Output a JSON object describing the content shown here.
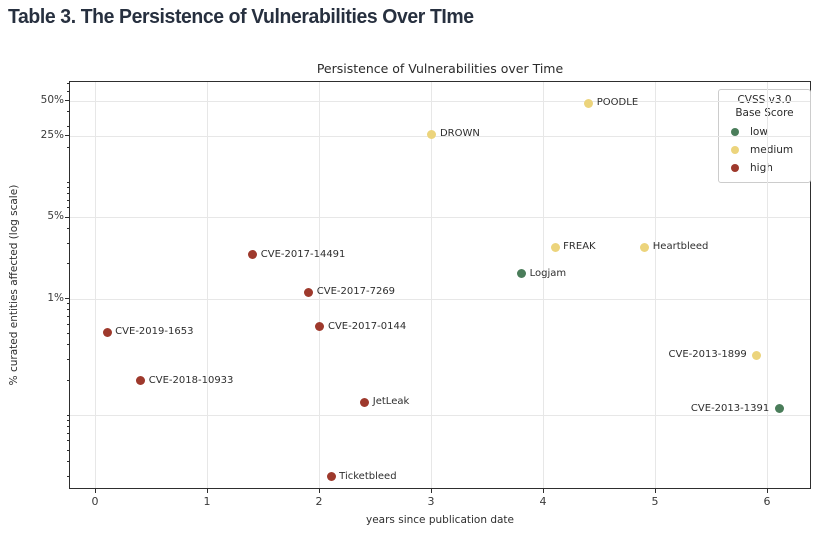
{
  "page": {
    "title": "Table 3. The Persistence of Vulnerabilities Over TIme"
  },
  "chart_data": {
    "type": "scatter",
    "title": "Persistence of Vulnerabilities over Time",
    "xlabel": "years since publication date",
    "ylabel": "% curated entities affected (log scale)",
    "x_axis": {
      "ticks": [
        0,
        1,
        2,
        3,
        4,
        5,
        6
      ],
      "min": -0.232,
      "max": 6.393,
      "grid": true
    },
    "y_axis": {
      "scale": "log",
      "tick_values": [
        50,
        25,
        5,
        1
      ],
      "tick_labels": [
        "50%",
        "25%",
        "5%",
        "1%"
      ],
      "grid_values": [
        50,
        25,
        5,
        1,
        0.1
      ],
      "min_percent": 0.023,
      "max_percent": 73,
      "grid": true
    },
    "legend": {
      "title": "CVSS v3.0\nBase Score",
      "position": "upper-right",
      "items": [
        {
          "label": "low",
          "color": "#4a7d5a"
        },
        {
          "label": "medium",
          "color": "#ecd47c"
        },
        {
          "label": "high",
          "color": "#9e392c"
        }
      ]
    },
    "severity_colors": {
      "low": "#4a7d5a",
      "medium": "#ecd47c",
      "high": "#9e392c"
    },
    "points": [
      {
        "label": "POODLE",
        "x": 4.4,
        "y_percent": 48,
        "severity": "medium",
        "label_side": "right"
      },
      {
        "label": "DROWN",
        "x": 3.0,
        "y_percent": 26,
        "severity": "medium",
        "label_side": "right"
      },
      {
        "label": "FREAK",
        "x": 4.1,
        "y_percent": 2.8,
        "severity": "medium",
        "label_side": "right"
      },
      {
        "label": "Heartbleed",
        "x": 4.9,
        "y_percent": 2.8,
        "severity": "medium",
        "label_side": "right"
      },
      {
        "label": "Logjam",
        "x": 3.8,
        "y_percent": 1.65,
        "severity": "low",
        "label_side": "right"
      },
      {
        "label": "CVE-2017-14491",
        "x": 1.4,
        "y_percent": 2.4,
        "severity": "high",
        "label_side": "right"
      },
      {
        "label": "CVE-2017-7269",
        "x": 1.9,
        "y_percent": 1.15,
        "severity": "high",
        "label_side": "right"
      },
      {
        "label": "CVE-2017-0144",
        "x": 2.0,
        "y_percent": 0.58,
        "severity": "high",
        "label_side": "right"
      },
      {
        "label": "CVE-2019-1653",
        "x": 0.1,
        "y_percent": 0.52,
        "severity": "high",
        "label_side": "right"
      },
      {
        "label": "CVE-2018-10933",
        "x": 0.4,
        "y_percent": 0.2,
        "severity": "high",
        "label_side": "right"
      },
      {
        "label": "JetLeak",
        "x": 2.4,
        "y_percent": 0.13,
        "severity": "high",
        "label_side": "right"
      },
      {
        "label": "Ticketbleed",
        "x": 2.1,
        "y_percent": 0.03,
        "severity": "high",
        "label_side": "right"
      },
      {
        "label": "CVE-2013-1899",
        "x": 5.9,
        "y_percent": 0.33,
        "severity": "medium",
        "label_side": "left"
      },
      {
        "label": "CVE-2013-1391",
        "x": 6.1,
        "y_percent": 0.115,
        "severity": "low",
        "label_side": "left"
      }
    ]
  }
}
